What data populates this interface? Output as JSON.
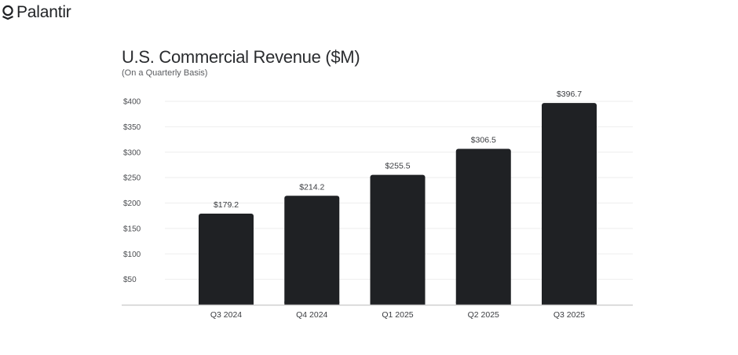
{
  "brand": {
    "name": "Palantir",
    "logo_icon": "palantir-logo-icon"
  },
  "chart_data": {
    "type": "bar",
    "title": "U.S. Commercial Revenue ($M)",
    "subtitle": "(On a Quarterly Basis)",
    "xlabel": "",
    "ylabel": "",
    "categories": [
      "Q3 2024",
      "Q4 2024",
      "Q1 2025",
      "Q2 2025",
      "Q3 2025"
    ],
    "values": [
      179.2,
      214.2,
      255.5,
      306.5,
      396.7
    ],
    "data_labels": [
      "$179.2",
      "$214.2",
      "$255.5",
      "$306.5",
      "$396.7"
    ],
    "ylim": [
      0,
      400
    ],
    "yticks": [
      50,
      100,
      150,
      200,
      250,
      300,
      350,
      400
    ],
    "ytick_labels": [
      "$50",
      "$100",
      "$150",
      "$200",
      "$250",
      "$300",
      "$350",
      "$400"
    ],
    "grid": true,
    "legend": "none",
    "bar_color": "#1f2124",
    "grid_color": "#eeeeee",
    "axis_color": "#cfcfcf"
  }
}
